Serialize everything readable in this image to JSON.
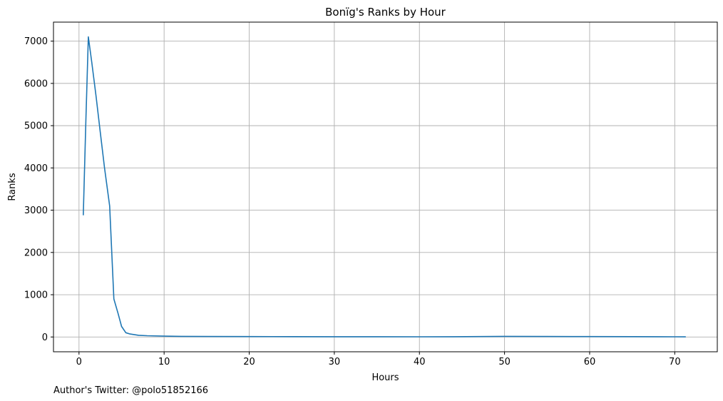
{
  "chart_data": {
    "type": "line",
    "title": "Bonïg's Ranks by Hour",
    "xlabel": "Hours",
    "ylabel": "Ranks",
    "xlim": [
      -3,
      75
    ],
    "ylim": [
      -350,
      7450
    ],
    "xticks": [
      0,
      10,
      20,
      30,
      40,
      50,
      60,
      70
    ],
    "yticks": [
      0,
      1000,
      2000,
      3000,
      4000,
      5000,
      6000,
      7000
    ],
    "grid": true,
    "line_color": "#1f77b4",
    "series": [
      {
        "x": [
          0.5,
          0.8,
          1.1,
          1.5,
          2.0,
          2.5,
          3.0,
          3.6,
          4.1,
          4.6,
          5.0,
          5.5,
          6.0,
          7.0,
          8.0,
          10.0,
          12.0,
          15.0,
          20.0,
          25.0,
          30.0,
          35.0,
          40.0,
          44.0,
          47.0,
          50.0,
          55.0,
          58.0,
          60.0,
          65.0,
          68.0,
          70.0,
          71.3
        ],
        "y": [
          2880,
          5100,
          7100,
          6500,
          5700,
          4850,
          4000,
          3100,
          900,
          550,
          250,
          100,
          70,
          40,
          30,
          20,
          15,
          12,
          10,
          8,
          7,
          6,
          5,
          6,
          10,
          15,
          12,
          10,
          9,
          8,
          7,
          5,
          3
        ]
      }
    ]
  },
  "footnote": "Author's Twitter: @polo51852166"
}
